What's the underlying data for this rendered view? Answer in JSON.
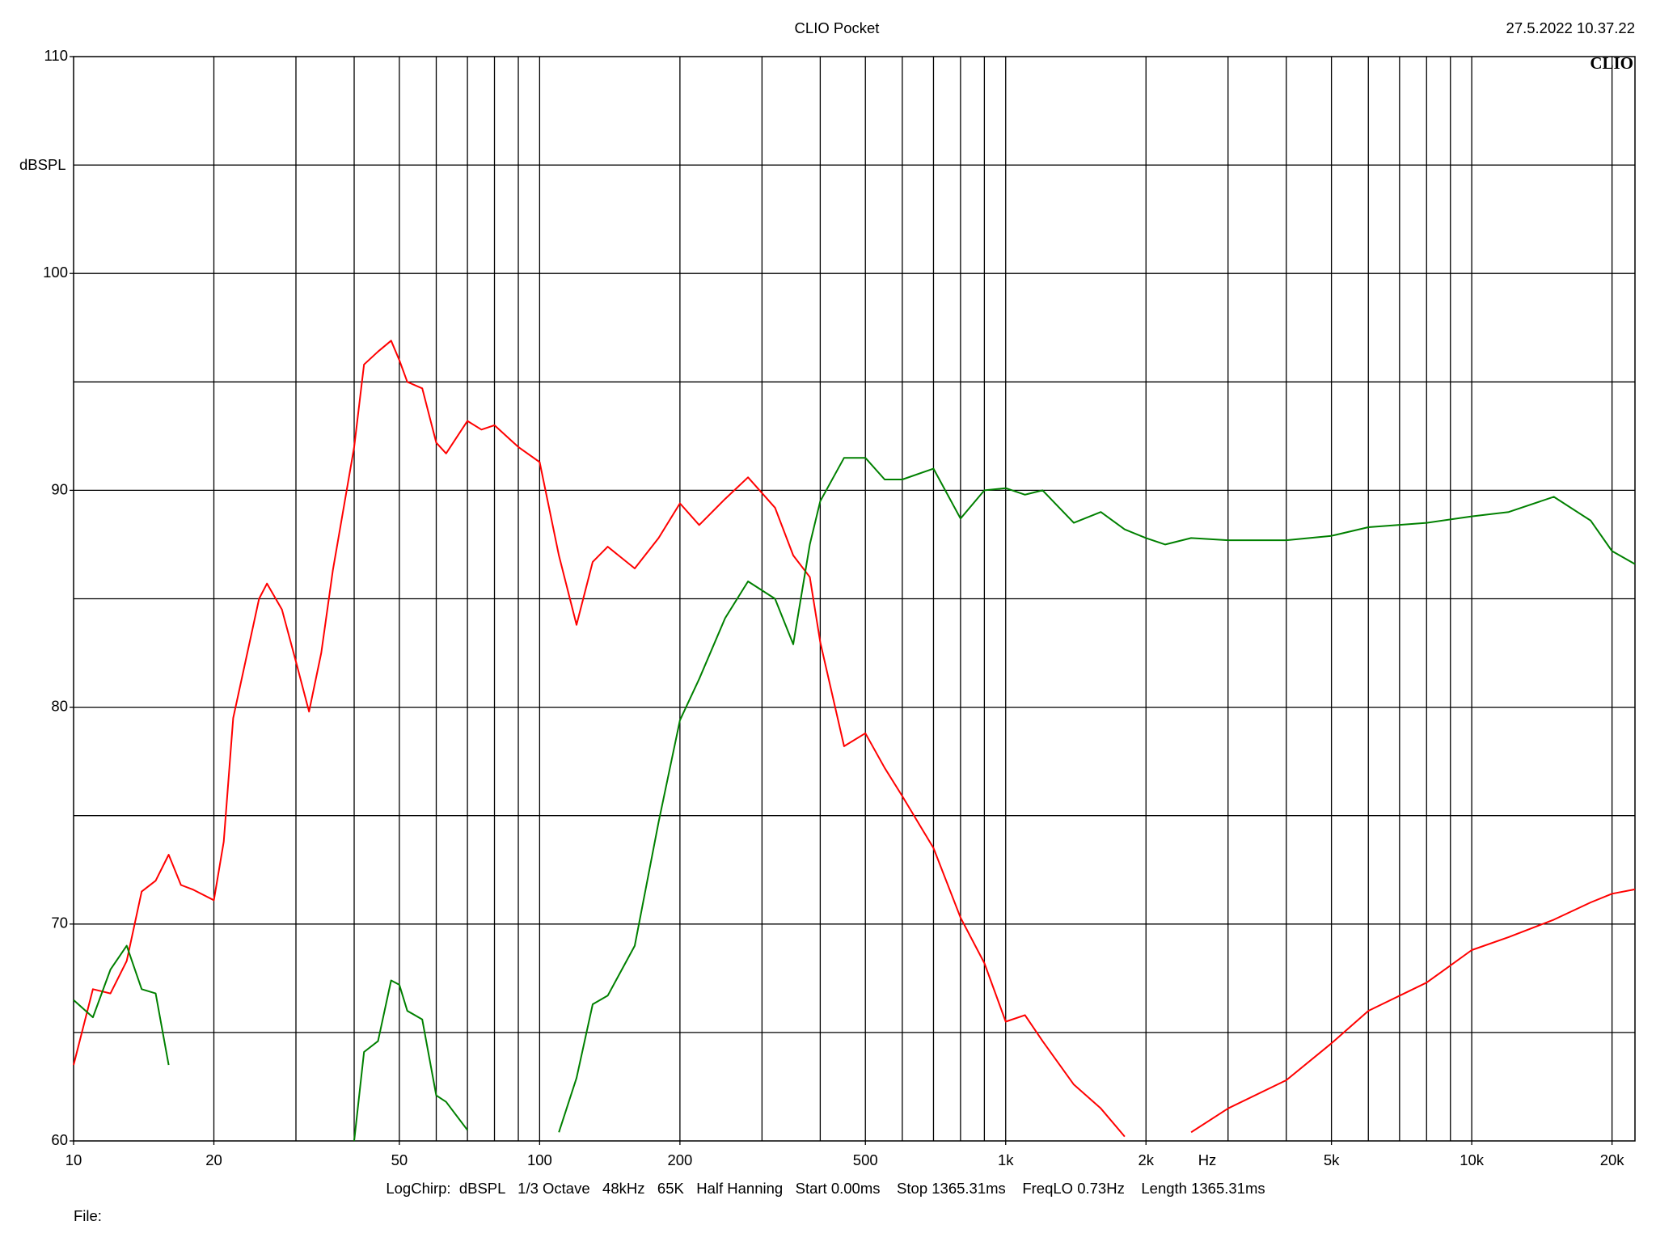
{
  "chart_data": {
    "type": "line",
    "title": "CLIO Pocket",
    "timestamp": "27.5.2022 10.37.22",
    "logo": "CLIO",
    "y_label": "dBSPL",
    "x_label": "Hz",
    "footer": "LogChirp:  dBSPL   1/3 Octave   48kHz   65K   Half Hanning   Start 0.00ms    Stop 1365.31ms    FreqLO 0.73Hz    Length 1365.31ms",
    "file_label": "File:",
    "x_scale": "log",
    "grid": true,
    "xlim": [
      10,
      22400
    ],
    "ylim": [
      60,
      110
    ],
    "xticks": [
      10,
      20,
      50,
      100,
      200,
      500,
      {
        "value": 1000,
        "label": "1k"
      },
      {
        "value": 2000,
        "label": "2k"
      },
      {
        "value": 5000,
        "label": "5k"
      },
      {
        "value": 10000,
        "label": "10k"
      },
      {
        "value": 20000,
        "label": "20k"
      }
    ],
    "yticks": [
      60,
      70,
      80,
      90,
      100,
      110
    ],
    "xgrid": [
      20,
      30,
      40,
      50,
      60,
      70,
      80,
      90,
      100,
      200,
      300,
      400,
      500,
      600,
      700,
      800,
      900,
      1000,
      2000,
      3000,
      4000,
      5000,
      6000,
      7000,
      8000,
      9000,
      10000,
      20000
    ],
    "ygrid": [
      65,
      70,
      75,
      80,
      85,
      90,
      95,
      100,
      105
    ],
    "x": [
      10,
      11,
      12,
      13,
      14,
      15,
      16,
      17,
      18,
      20,
      21,
      22,
      25,
      26,
      28,
      30,
      32,
      34,
      36,
      40,
      42,
      45,
      48,
      50,
      52,
      56,
      60,
      63,
      70,
      75,
      80,
      90,
      100,
      110,
      120,
      130,
      140,
      160,
      180,
      200,
      220,
      250,
      280,
      320,
      350,
      380,
      400,
      450,
      500,
      550,
      600,
      700,
      800,
      900,
      1000,
      1100,
      1200,
      1400,
      1600,
      1800,
      2000,
      2200,
      2500,
      3000,
      4000,
      5000,
      6000,
      8000,
      10000,
      12000,
      15000,
      18000,
      20000,
      22400
    ],
    "series": [
      {
        "color": "#ff0000",
        "values": [
          63.5,
          67,
          66.8,
          68.3,
          71.5,
          72.0,
          73.2,
          71.8,
          71.6,
          71.1,
          73.8,
          79.5,
          85.0,
          85.7,
          84.5,
          82.1,
          79.8,
          82.5,
          86.3,
          92.0,
          95.8,
          96.4,
          96.9,
          96.0,
          95.0,
          94.7,
          92.2,
          91.7,
          93.2,
          92.8,
          93.0,
          92.0,
          91.3,
          87,
          83.8,
          86.7,
          87.4,
          86.4,
          87.8,
          89.4,
          88.4,
          89.6,
          90.6,
          89.2,
          87,
          86,
          83,
          78.2,
          78.8,
          77.2,
          75.9,
          73.5,
          70.3,
          68.2,
          65.5,
          65.8,
          64.6,
          62.6,
          61.5,
          60.2,
          null,
          null,
          60.4,
          61.5,
          62.8,
          64.5,
          66,
          67.3,
          68.8,
          69.4,
          70.2,
          71.0,
          71.4,
          71.6
        ]
      },
      {
        "color": "#008000",
        "values": [
          66.5,
          65.7,
          67.9,
          69.0,
          67,
          66.8,
          63.5,
          null,
          null,
          null,
          null,
          null,
          null,
          null,
          null,
          null,
          null,
          null,
          null,
          60.0,
          64.1,
          64.6,
          67.4,
          67.2,
          66.0,
          65.6,
          62.1,
          61.8,
          60.5,
          null,
          null,
          null,
          null,
          60.4,
          62.9,
          66.3,
          66.7,
          69,
          74.7,
          79.4,
          81.3,
          84.1,
          85.8,
          85.0,
          82.9,
          87.5,
          89.5,
          91.5,
          91.5,
          90.5,
          90.5,
          91.0,
          88.7,
          90.0,
          90.1,
          89.8,
          90.0,
          88.5,
          89.0,
          88.2,
          87.8,
          87.5,
          87.8,
          87.7,
          87.7,
          87.9,
          88.3,
          88.5,
          88.8,
          89.0,
          89.7,
          88.6,
          87.2,
          86.6
        ]
      }
    ]
  }
}
